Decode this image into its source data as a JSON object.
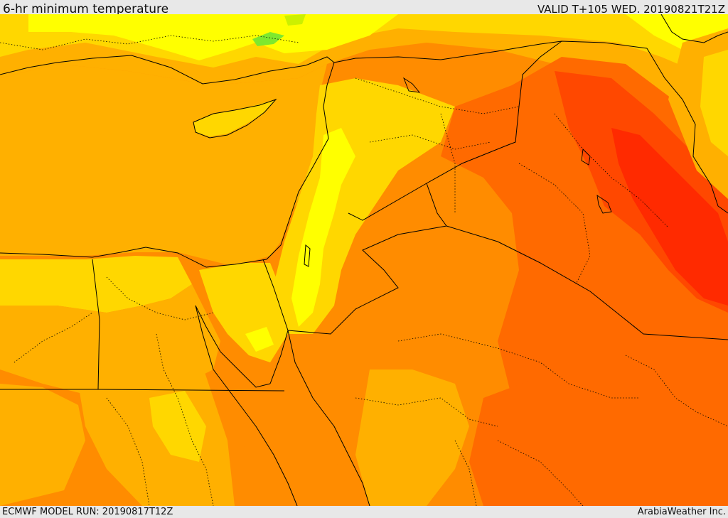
{
  "header": {
    "title": "6-hr minimum temperature",
    "valid": "VALID T+105 WED. 20190821T21Z"
  },
  "footer": {
    "model_run": "ECMWF MODEL RUN: 20190817T12Z",
    "credit": "ArabiaWeather Inc."
  },
  "palette": {
    "green": "#7ee82e",
    "yellow_green": "#ccf000",
    "yellow": "#ffff00",
    "light_yellow": "#ffec00",
    "gold": "#ffd700",
    "amber": "#ffb000",
    "orange": "#ff8c00",
    "dark_orange": "#ff6a00",
    "red_orange": "#ff4800",
    "red": "#ff2a00",
    "border": "#000000"
  }
}
